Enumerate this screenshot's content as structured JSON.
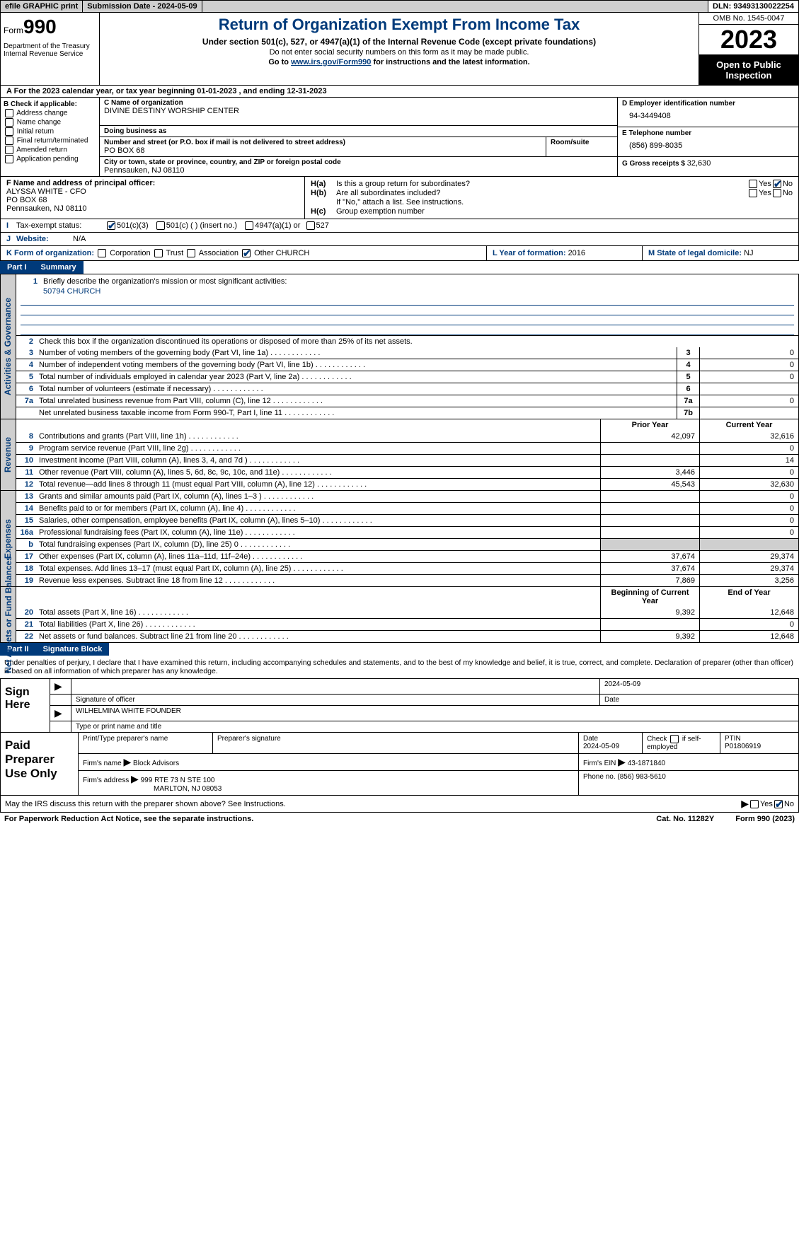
{
  "top": {
    "efile": "efile GRAPHIC print",
    "subdate_lbl": "Submission Date - ",
    "subdate": "2024-05-09",
    "dln_lbl": "DLN: ",
    "dln": "93493130022254"
  },
  "header": {
    "form_lbl": "Form",
    "form_num": "990",
    "title": "Return of Organization Exempt From Income Tax",
    "sub1": "Under section 501(c), 527, or 4947(a)(1) of the Internal Revenue Code (except private foundations)",
    "sub2": "Do not enter social security numbers on this form as it may be made public.",
    "sub3_pre": "Go to ",
    "sub3_link": "www.irs.gov/Form990",
    "sub3_post": " for instructions and the latest information.",
    "dept": "Department of the Treasury\nInternal Revenue Service",
    "omb": "OMB No. 1545-0047",
    "year": "2023",
    "open": "Open to Public Inspection"
  },
  "lineA": {
    "pre": "A   For the 2023 calendar year, or tax year beginning ",
    "begin": "01-01-2023",
    "mid": "  , and ending ",
    "end": "12-31-2023"
  },
  "B": {
    "hdr": "B Check if applicable:",
    "opts": [
      "Address change",
      "Name change",
      "Initial return",
      "Final return/terminated",
      "Amended return",
      "Application pending"
    ]
  },
  "C": {
    "name_lbl": "C Name of organization",
    "name": "DIVINE DESTINY WORSHIP CENTER",
    "dba_lbl": "Doing business as",
    "dba": "",
    "addr_lbl": "Number and street (or P.O. box if mail is not delivered to street address)",
    "room_lbl": "Room/suite",
    "addr": "PO BOX 68",
    "city_lbl": "City or town, state or province, country, and ZIP or foreign postal code",
    "city": "Pennsauken, NJ  08110"
  },
  "D": {
    "lbl": "D Employer identification number",
    "val": "94-3449408"
  },
  "E": {
    "lbl": "E Telephone number",
    "val": "(856) 899-8035"
  },
  "G": {
    "lbl": "G Gross receipts $ ",
    "val": "32,630"
  },
  "F": {
    "lbl": "F  Name and address of principal officer:",
    "name": "ALYSSA WHITE - CFO",
    "addr": "PO BOX 68",
    "city": "Pennsauken, NJ  08110"
  },
  "H": {
    "a": "Is this a group return for subordinates?",
    "a_no": true,
    "b": "Are all subordinates included?",
    "b_note": "If \"No,\" attach a list. See instructions.",
    "c": "Group exemption number",
    "ha": "H(a)",
    "hb": "H(b)",
    "hc": "H(c)"
  },
  "I": {
    "lbl": "Tax-exempt status:",
    "c3": "501(c)(3)",
    "c": "501(c) (  ) (insert no.)",
    "a1": "4947(a)(1) or",
    "s527": "527"
  },
  "J": {
    "lbl": "Website:",
    "val": "N/A"
  },
  "K": {
    "lbl": "K Form of organization:",
    "opts": [
      "Corporation",
      "Trust",
      "Association"
    ],
    "other_lbl": "Other",
    "other_val": "CHURCH"
  },
  "L": {
    "lbl": "L Year of formation: ",
    "val": "2016"
  },
  "M": {
    "lbl": "M State of legal domicile: ",
    "val": "NJ"
  },
  "part1": {
    "num": "Part I",
    "title": "Summary"
  },
  "mission": {
    "lbl": "Briefly describe the organization's mission or most significant activities:",
    "val": "50794 CHURCH"
  },
  "gov": {
    "label": "Activities & Governance",
    "l2": "Check this box      if the organization discontinued its operations or disposed of more than 25% of its net assets.",
    "rows": [
      {
        "n": "3",
        "t": "Number of voting members of the governing body (Part VI, line 1a)",
        "b": "3",
        "v": "0"
      },
      {
        "n": "4",
        "t": "Number of independent voting members of the governing body (Part VI, line 1b)",
        "b": "4",
        "v": "0"
      },
      {
        "n": "5",
        "t": "Total number of individuals employed in calendar year 2023 (Part V, line 2a)",
        "b": "5",
        "v": "0"
      },
      {
        "n": "6",
        "t": "Total number of volunteers (estimate if necessary)",
        "b": "6",
        "v": ""
      },
      {
        "n": "7a",
        "t": "Total unrelated business revenue from Part VIII, column (C), line 12",
        "b": "7a",
        "v": "0"
      },
      {
        "n": "",
        "t": "Net unrelated business taxable income from Form 990-T, Part I, line 11",
        "b": "7b",
        "v": ""
      }
    ]
  },
  "rev": {
    "label": "Revenue",
    "prior": "Prior Year",
    "curr": "Current Year",
    "rows": [
      {
        "n": "8",
        "t": "Contributions and grants (Part VIII, line 1h)",
        "p": "42,097",
        "c": "32,616"
      },
      {
        "n": "9",
        "t": "Program service revenue (Part VIII, line 2g)",
        "p": "",
        "c": "0"
      },
      {
        "n": "10",
        "t": "Investment income (Part VIII, column (A), lines 3, 4, and 7d )",
        "p": "",
        "c": "14"
      },
      {
        "n": "11",
        "t": "Other revenue (Part VIII, column (A), lines 5, 6d, 8c, 9c, 10c, and 11e)",
        "p": "3,446",
        "c": "0"
      },
      {
        "n": "12",
        "t": "Total revenue—add lines 8 through 11 (must equal Part VIII, column (A), line 12)",
        "p": "45,543",
        "c": "32,630"
      }
    ]
  },
  "exp": {
    "label": "Expenses",
    "rows": [
      {
        "n": "13",
        "t": "Grants and similar amounts paid (Part IX, column (A), lines 1–3 )",
        "p": "",
        "c": "0"
      },
      {
        "n": "14",
        "t": "Benefits paid to or for members (Part IX, column (A), line 4)",
        "p": "",
        "c": "0"
      },
      {
        "n": "15",
        "t": "Salaries, other compensation, employee benefits (Part IX, column (A), lines 5–10)",
        "p": "",
        "c": "0"
      },
      {
        "n": "16a",
        "t": "Professional fundraising fees (Part IX, column (A), line 11e)",
        "p": "",
        "c": "0"
      },
      {
        "n": "b",
        "t": "Total fundraising expenses (Part IX, column (D), line 25) 0",
        "p": "grey",
        "c": "grey"
      },
      {
        "n": "17",
        "t": "Other expenses (Part IX, column (A), lines 11a–11d, 11f–24e)",
        "p": "37,674",
        "c": "29,374"
      },
      {
        "n": "18",
        "t": "Total expenses. Add lines 13–17 (must equal Part IX, column (A), line 25)",
        "p": "37,674",
        "c": "29,374"
      },
      {
        "n": "19",
        "t": "Revenue less expenses. Subtract line 18 from line 12",
        "p": "7,869",
        "c": "3,256"
      }
    ]
  },
  "net": {
    "label": "Net Assets or Fund Balances",
    "begin": "Beginning of Current Year",
    "end": "End of Year",
    "rows": [
      {
        "n": "20",
        "t": "Total assets (Part X, line 16)",
        "p": "9,392",
        "c": "12,648"
      },
      {
        "n": "21",
        "t": "Total liabilities (Part X, line 26)",
        "p": "",
        "c": "0"
      },
      {
        "n": "22",
        "t": "Net assets or fund balances. Subtract line 21 from line 20",
        "p": "9,392",
        "c": "12,648"
      }
    ]
  },
  "part2": {
    "num": "Part II",
    "title": "Signature Block"
  },
  "sig_text": "Under penalties of perjury, I declare that I have examined this return, including accompanying schedules and statements, and to the best of my knowledge and belief, it is true, correct, and complete. Declaration of preparer (other than officer) is based on all information of which preparer has any knowledge.",
  "sign": {
    "lbl": "Sign Here",
    "date": "2024-05-09",
    "sig_lbl": "Signature of officer",
    "date_lbl": "Date",
    "name": "WILHELMINA WHITE  FOUNDER",
    "name_lbl": "Type or print name and title"
  },
  "paid": {
    "lbl": "Paid Preparer Use Only",
    "h1": "Print/Type preparer's name",
    "h2": "Preparer's signature",
    "h3": "Date",
    "h3v": "2024-05-09",
    "h4_pre": "Check",
    "h4_post": "if self-employed",
    "h5": "PTIN",
    "h5v": "P01806919",
    "firm_lbl": "Firm's name",
    "firm": "Block Advisors",
    "ein_lbl": "Firm's EIN",
    "ein": "43-1871840",
    "addr_lbl": "Firm's address",
    "addr1": "999 RTE 73 N STE 100",
    "addr2": "MARLTON, NJ  08053",
    "phone_lbl": "Phone no. ",
    "phone": "(856) 983-5610"
  },
  "discuss": {
    "txt": "May the IRS discuss this return with the preparer shown above? See Instructions.",
    "yes": "Yes",
    "no": "No"
  },
  "footer": {
    "l": "For Paperwork Reduction Act Notice, see the separate instructions.",
    "cat": "Cat. No. 11282Y",
    "r": "Form 990 (2023)"
  }
}
